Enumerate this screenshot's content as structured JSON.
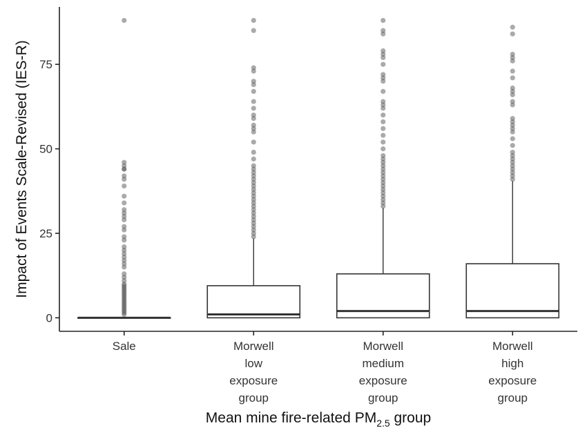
{
  "chart_data": {
    "type": "boxplot",
    "xlabel_main": "Mean mine fire-related PM",
    "xlabel_sub": "2.5",
    "xlabel_tail": " group",
    "ylabel": "Impact of Events Scale-Revised (IES-R)",
    "ylim": [
      -4,
      92
    ],
    "yticks": [
      0,
      25,
      50,
      75
    ],
    "grid": false,
    "groups": [
      {
        "label_lines": [
          "Sale"
        ],
        "q1": 0,
        "median": 0,
        "q3": 0,
        "whisker_low": 0,
        "whisker_high": 0,
        "outliers": [
          1,
          1.5,
          2,
          2.5,
          3,
          3.5,
          4,
          4.5,
          5,
          5.5,
          6,
          6.5,
          7,
          7.5,
          8,
          8.5,
          9,
          9.5,
          10,
          11,
          12,
          13,
          15,
          16,
          17,
          18,
          19,
          20,
          21,
          23,
          24,
          26,
          27,
          29,
          30,
          31,
          32,
          34,
          36,
          39,
          41,
          42,
          44,
          44,
          45,
          46,
          88
        ]
      },
      {
        "label_lines": [
          "Morwell",
          "low",
          "exposure",
          "group"
        ],
        "q1": 0,
        "median": 1,
        "q3": 9.5,
        "whisker_low": 0,
        "whisker_high": 23.5,
        "outliers": [
          24,
          25,
          26,
          27,
          28,
          29,
          30,
          31,
          32,
          33,
          34,
          35,
          36,
          37,
          38,
          39,
          40,
          41,
          42,
          43,
          44,
          45,
          47,
          49,
          52,
          55,
          56,
          57,
          59,
          60,
          62,
          64,
          67,
          69,
          70,
          73,
          74,
          85,
          88
        ]
      },
      {
        "label_lines": [
          "Morwell",
          "medium",
          "exposure",
          "group"
        ],
        "q1": 0,
        "median": 2,
        "q3": 13,
        "whisker_low": 0,
        "whisker_high": 32.5,
        "outliers": [
          33,
          34,
          35,
          36,
          37,
          38,
          39,
          40,
          41,
          42,
          43,
          44,
          45,
          46,
          47,
          48,
          50,
          52,
          54,
          56,
          58,
          60,
          62,
          63,
          64,
          67,
          70,
          71,
          72,
          75,
          77,
          78,
          79,
          84,
          85,
          88
        ]
      },
      {
        "label_lines": [
          "Morwell",
          "high",
          "exposure",
          "group"
        ],
        "q1": 0,
        "median": 2,
        "q3": 16,
        "whisker_low": 0,
        "whisker_high": 40.5,
        "outliers": [
          41,
          42,
          43,
          44,
          45,
          46,
          47,
          48,
          49,
          51,
          53,
          55,
          56,
          57,
          58,
          59,
          63,
          64,
          66,
          67,
          68,
          71,
          73,
          76,
          77,
          78,
          84,
          86
        ]
      }
    ]
  }
}
